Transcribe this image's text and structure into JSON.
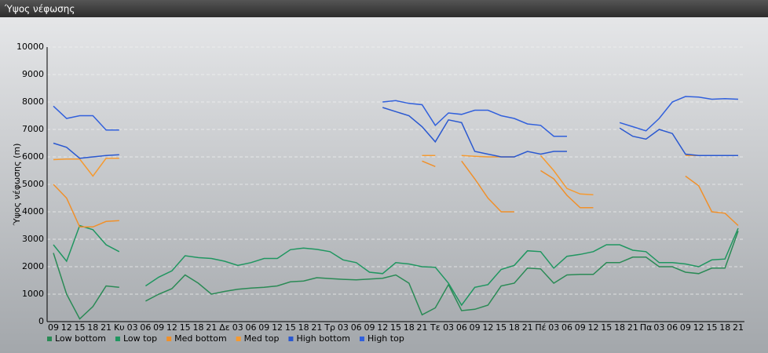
{
  "chart_data": {
    "type": "line",
    "title": "Ύψος νέφωσης",
    "ylabel": "Ύψος νέφωσης (m)",
    "categories": [
      "09",
      "12",
      "15",
      "18",
      "21",
      "Κυ",
      "03",
      "06",
      "09",
      "12",
      "15",
      "18",
      "21",
      "Δε",
      "03",
      "06",
      "09",
      "12",
      "15",
      "18",
      "21",
      "Τρ",
      "03",
      "06",
      "09",
      "12",
      "15",
      "18",
      "21",
      "Τε",
      "03",
      "06",
      "09",
      "12",
      "15",
      "18",
      "21",
      "Πέ",
      "03",
      "06",
      "09",
      "12",
      "15",
      "18",
      "21",
      "Πα",
      "03",
      "06",
      "09",
      "12",
      "15",
      "18",
      "21"
    ],
    "series": [
      {
        "name": "Low bottom",
        "color": "#2a8a55",
        "values": [
          2500,
          1000,
          100,
          550,
          1300,
          1250,
          null,
          750,
          1000,
          1200,
          1700,
          1400,
          1000,
          1100,
          1180,
          1220,
          1250,
          1300,
          1450,
          1480,
          1600,
          1570,
          1540,
          1520,
          1550,
          1580,
          1700,
          1400,
          250,
          500,
          1350,
          400,
          450,
          600,
          1300,
          1400,
          1950,
          1920,
          1400,
          1700,
          1720,
          1720,
          2150,
          2150,
          2350,
          2350,
          2000,
          2000,
          1800,
          1750,
          1950,
          1950,
          3300
        ]
      },
      {
        "name": "Low top",
        "color": "#1f9660",
        "values": [
          2800,
          2200,
          3500,
          3350,
          2800,
          2550,
          null,
          1300,
          1620,
          1850,
          2400,
          2330,
          2300,
          2200,
          2050,
          2150,
          2300,
          2300,
          2620,
          2680,
          2630,
          2550,
          2250,
          2150,
          1800,
          1750,
          2150,
          2100,
          2000,
          1980,
          1400,
          600,
          1250,
          1350,
          1900,
          2050,
          2580,
          2550,
          1950,
          2380,
          2450,
          2550,
          2800,
          2800,
          2600,
          2550,
          2150,
          2150,
          2100,
          2000,
          2250,
          2280,
          3400
        ]
      },
      {
        "name": "Med bottom",
        "color": "#f0902a",
        "values": [
          5000,
          4500,
          3450,
          3450,
          3650,
          3680,
          null,
          null,
          null,
          null,
          null,
          null,
          null,
          null,
          null,
          null,
          null,
          null,
          null,
          null,
          null,
          null,
          null,
          null,
          null,
          null,
          null,
          null,
          5850,
          5650,
          null,
          5850,
          5200,
          4500,
          4000,
          4000,
          null,
          5500,
          5200,
          4600,
          4150,
          4150,
          null,
          null,
          null,
          null,
          null,
          null,
          5300,
          4950,
          4000,
          3950,
          3500
        ]
      },
      {
        "name": "Med top",
        "color": "#f59a30",
        "values": [
          5900,
          5920,
          5920,
          5300,
          5950,
          5950,
          null,
          null,
          null,
          null,
          null,
          null,
          null,
          null,
          null,
          null,
          null,
          null,
          null,
          null,
          null,
          null,
          null,
          null,
          null,
          null,
          null,
          null,
          6050,
          6050,
          null,
          6050,
          6020,
          6000,
          6000,
          6000,
          null,
          6050,
          5500,
          4850,
          4650,
          4620,
          null,
          null,
          null,
          null,
          null,
          null,
          6050,
          6050,
          6050,
          6050,
          6050
        ]
      },
      {
        "name": "High bottom",
        "color": "#2a58d0",
        "values": [
          6500,
          6350,
          5950,
          6000,
          6050,
          6080,
          null,
          null,
          null,
          null,
          null,
          null,
          null,
          null,
          null,
          null,
          null,
          null,
          null,
          null,
          null,
          null,
          null,
          null,
          null,
          7800,
          7650,
          7500,
          7100,
          6550,
          7350,
          7250,
          6200,
          6100,
          6000,
          6000,
          6200,
          6100,
          6200,
          6200,
          null,
          null,
          null,
          7050,
          6750,
          6650,
          7000,
          6850,
          6100,
          6050,
          6050,
          6050,
          6050
        ]
      },
      {
        "name": "High top",
        "color": "#3160dc",
        "values": [
          7850,
          7400,
          7500,
          7500,
          6980,
          6980,
          null,
          null,
          null,
          null,
          null,
          null,
          null,
          null,
          null,
          null,
          null,
          null,
          null,
          null,
          null,
          null,
          null,
          null,
          null,
          8000,
          8050,
          7950,
          7900,
          7150,
          7600,
          7550,
          7700,
          7700,
          7500,
          7400,
          7200,
          7150,
          6750,
          6750,
          null,
          null,
          null,
          7250,
          7100,
          6950,
          7400,
          8000,
          8200,
          8180,
          8100,
          8120,
          8100
        ]
      }
    ],
    "ylim": [
      0,
      10000
    ],
    "yticks": [
      0,
      1000,
      2000,
      3000,
      4000,
      5000,
      6000,
      7000,
      8000,
      9000,
      10000
    ],
    "grid": true
  }
}
